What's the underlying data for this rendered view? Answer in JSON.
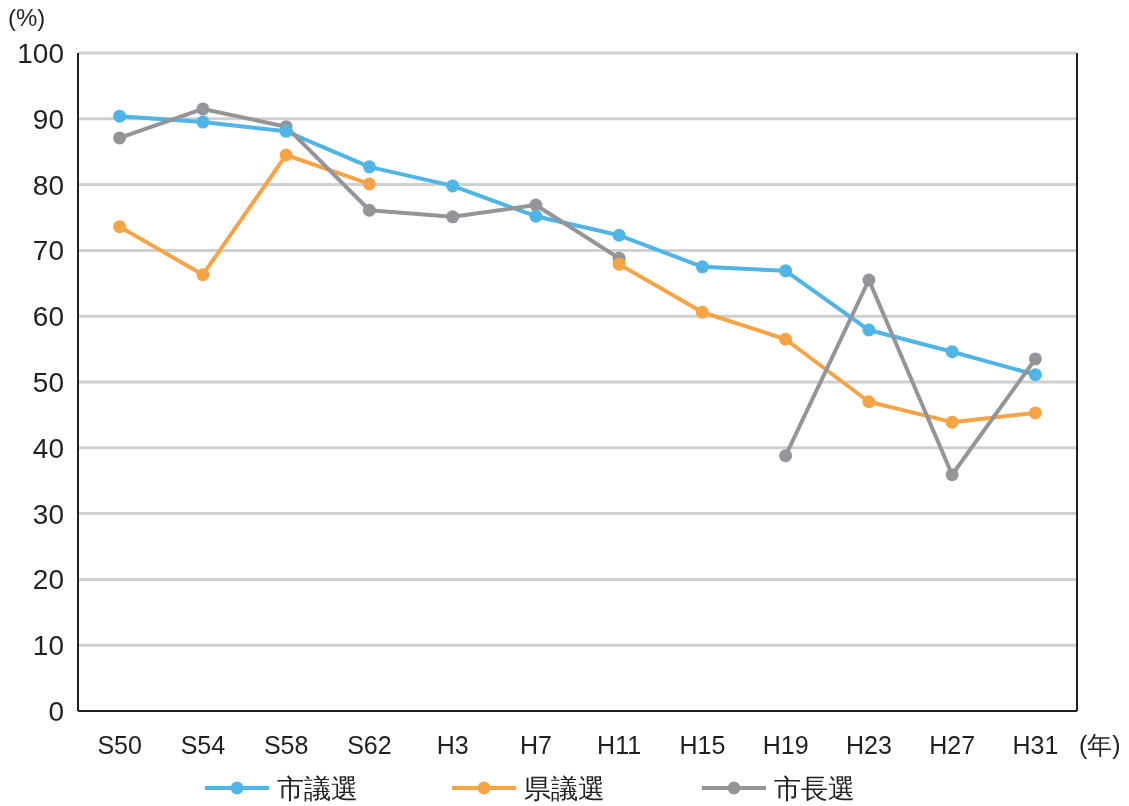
{
  "chart_data": {
    "type": "line",
    "ylabel": "(%)",
    "xlabel": "(年)",
    "categories": [
      "S50",
      "S54",
      "S58",
      "S62",
      "H3",
      "H7",
      "H11",
      "H15",
      "H19",
      "H23",
      "H27",
      "H31"
    ],
    "series": [
      {
        "name": "市議選",
        "color": "#4fb5e6",
        "values": [
          90.4,
          89.5,
          88.1,
          82.7,
          79.8,
          75.2,
          72.3,
          67.5,
          66.9,
          57.9,
          54.6,
          51.1
        ]
      },
      {
        "name": "県議選",
        "color": "#f7a446",
        "values": [
          73.6,
          66.3,
          84.5,
          80.1,
          null,
          null,
          67.9,
          60.6,
          56.5,
          47.0,
          43.9,
          45.3
        ]
      },
      {
        "name": "市長選",
        "color": "#939598",
        "values": [
          87.1,
          91.5,
          88.8,
          76.1,
          75.1,
          76.9,
          68.8,
          null,
          38.8,
          65.5,
          35.9,
          53.5
        ]
      }
    ],
    "ylim": [
      0,
      100
    ],
    "yticks": [
      0,
      10,
      20,
      30,
      40,
      50,
      60,
      70,
      80,
      90,
      100
    ],
    "grid": "y",
    "legend": "bottom",
    "marker": "circle",
    "line_style": "solid"
  }
}
